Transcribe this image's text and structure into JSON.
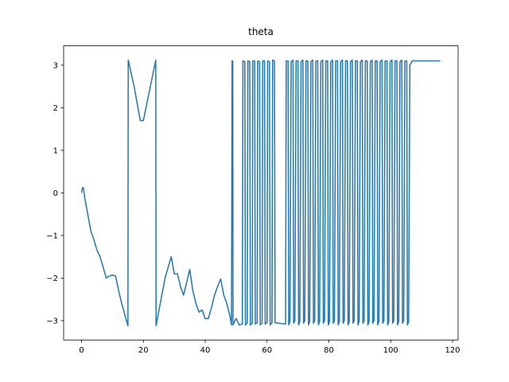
{
  "chart_data": {
    "type": "line",
    "title": "theta",
    "x": [
      0,
      0.3,
      0.6,
      1,
      2,
      3,
      4,
      5,
      6,
      7,
      8,
      9,
      10,
      11,
      12,
      13,
      15,
      15.1,
      17,
      19,
      20,
      24,
      24.1,
      27,
      29,
      30,
      31,
      32,
      33,
      34,
      35,
      36,
      37,
      38,
      39,
      40,
      41,
      42,
      43,
      44,
      45,
      46,
      47,
      48,
      48.5,
      48.7,
      48.9,
      49,
      50,
      51,
      52,
      52.2,
      52.8,
      53,
      53.6,
      53.8,
      54.4,
      54.6,
      55.2,
      55.4,
      56,
      56.2,
      56.8,
      57,
      57.6,
      57.8,
      58.4,
      58.6,
      59.2,
      59.4,
      60,
      60.2,
      60.8,
      61,
      61.6,
      61.8,
      62.4,
      62.6,
      66,
      66.2,
      66.8,
      67,
      67.4,
      67.8,
      68.4,
      68.6,
      69,
      69.4,
      70,
      70.2,
      70.6,
      71,
      71.6,
      71.8,
      72.2,
      72.6,
      73.2,
      73.4,
      73.8,
      74.2,
      74.8,
      75,
      75.4,
      75.8,
      76.4,
      76.6,
      77,
      77.4,
      78,
      78.2,
      78.6,
      79,
      79.6,
      79.8,
      80.2,
      80.6,
      81.2,
      81.4,
      81.8,
      82.2,
      82.8,
      83,
      83.4,
      83.8,
      84.4,
      84.6,
      85,
      85.4,
      86,
      86.2,
      86.6,
      87,
      87.6,
      87.8,
      88.2,
      88.6,
      89.2,
      89.4,
      89.8,
      90.2,
      90.8,
      91,
      91.4,
      91.8,
      92.4,
      92.6,
      93,
      93.4,
      94,
      94.2,
      94.6,
      95,
      95.6,
      95.8,
      96.2,
      96.6,
      97.2,
      97.4,
      97.8,
      98.2,
      98.8,
      99,
      99.4,
      99.8,
      100.4,
      100.6,
      101,
      101.4,
      102,
      102.2,
      102.6,
      103,
      103.6,
      103.8,
      104.2,
      104.6,
      105.2,
      105.4,
      105.8,
      106.2,
      107,
      116
    ],
    "values": [
      0,
      0.12,
      0.12,
      -0.1,
      -0.5,
      -0.9,
      -1.1,
      -1.35,
      -1.5,
      -1.75,
      -2.0,
      -1.95,
      -1.93,
      -1.95,
      -2.3,
      -2.6,
      -3.12,
      3.12,
      2.5,
      1.7,
      1.7,
      3.12,
      -3.12,
      -2.0,
      -1.5,
      -1.9,
      -1.9,
      -2.2,
      -2.4,
      -2.1,
      -1.8,
      -2.3,
      -2.6,
      -2.8,
      -2.75,
      -2.95,
      -2.95,
      -2.7,
      -2.4,
      -2.2,
      -2.02,
      -2.4,
      -2.6,
      -2.9,
      -3.1,
      3.1,
      3.1,
      -3.1,
      -2.95,
      -3.1,
      -3.08,
      3.1,
      3.08,
      -3.1,
      -3.05,
      3.1,
      3.08,
      -3.1,
      -3.06,
      3.1,
      3.1,
      -3.08,
      -3.05,
      3.1,
      3.08,
      -3.1,
      -3.06,
      3.1,
      3.1,
      -3.08,
      -3.04,
      3.1,
      3.08,
      -3.1,
      -3.05,
      3.12,
      3.1,
      -3.05,
      -3.08,
      3.1,
      3.1,
      -3.1,
      -3.02,
      3.08,
      3.12,
      -3.06,
      -3.0,
      3.1,
      3.1,
      -3.1,
      -3.02,
      3.08,
      3.12,
      -3.06,
      -3.0,
      3.1,
      3.1,
      -3.1,
      -3.02,
      3.08,
      3.12,
      -3.06,
      -3.0,
      3.1,
      3.1,
      -3.1,
      -3.02,
      3.08,
      3.12,
      -3.06,
      -3.0,
      3.1,
      3.1,
      -3.1,
      -3.02,
      3.08,
      3.12,
      -3.06,
      -3.0,
      3.1,
      3.1,
      -3.1,
      -3.02,
      3.08,
      3.12,
      -3.06,
      -3.0,
      3.1,
      3.1,
      -3.1,
      -3.02,
      3.08,
      3.12,
      -3.06,
      -3.0,
      3.1,
      3.1,
      -3.1,
      -3.02,
      3.08,
      3.12,
      -3.06,
      -3.0,
      3.1,
      3.1,
      -3.1,
      -3.02,
      3.08,
      3.12,
      -3.06,
      -3.0,
      3.1,
      3.1,
      -3.1,
      -3.02,
      3.08,
      3.12,
      -3.06,
      -3.0,
      3.1,
      3.1,
      -3.1,
      -3.02,
      3.08,
      3.12,
      -3.06,
      -3.0,
      3.1,
      3.1,
      -3.1,
      -3.02,
      3.08,
      3.12,
      -3.06,
      -3.0,
      3.1,
      3.1,
      -3.1,
      -3.02,
      3.0,
      3.1,
      3.1
    ],
    "color": "#1f77b4",
    "xlim": [
      -5.8,
      121.8
    ],
    "xticks": [
      0,
      20,
      40,
      60,
      80,
      100,
      120
    ],
    "ylim": [
      -3.454,
      3.454
    ],
    "yticks": [
      {
        "value": -3,
        "label": "−3"
      },
      {
        "value": -2,
        "label": "−2"
      },
      {
        "value": -1,
        "label": "−1"
      },
      0,
      1,
      2,
      3
    ]
  }
}
